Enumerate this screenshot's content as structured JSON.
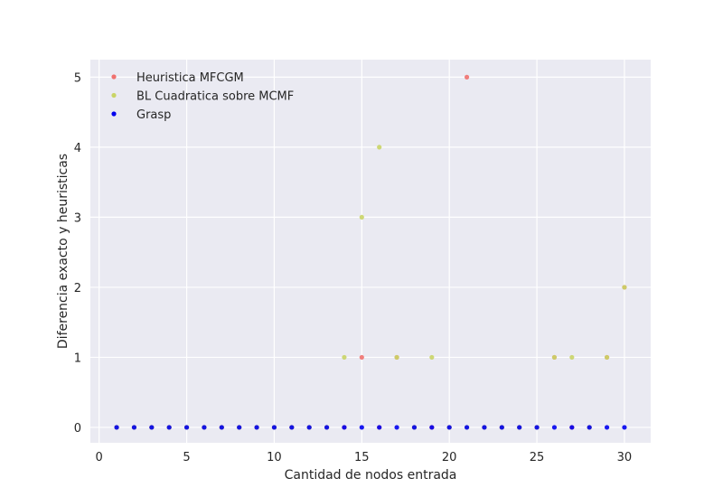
{
  "chart_data": {
    "type": "scatter",
    "xlabel": "Cantidad de nodos entrada",
    "ylabel": "Diferencia exacto y heuristicas",
    "xlim": [
      -0.5,
      31.5
    ],
    "ylim": [
      -0.22,
      5.25
    ],
    "xticks": [
      0,
      5,
      10,
      15,
      20,
      25,
      30
    ],
    "yticks": [
      0,
      1,
      2,
      3,
      4,
      5
    ],
    "grid": true,
    "legend_position": "top-left",
    "series": [
      {
        "name": "Heuristica MFCGM",
        "color": "#f0716e",
        "points": [
          [
            1,
            0
          ],
          [
            2,
            0
          ],
          [
            3,
            0
          ],
          [
            4,
            0
          ],
          [
            5,
            0
          ],
          [
            6,
            0
          ],
          [
            7,
            0
          ],
          [
            8,
            0
          ],
          [
            9,
            0
          ],
          [
            10,
            0
          ],
          [
            11,
            0
          ],
          [
            12,
            0
          ],
          [
            13,
            0
          ],
          [
            14,
            0
          ],
          [
            15,
            1
          ],
          [
            16,
            0
          ],
          [
            17,
            1
          ],
          [
            18,
            0
          ],
          [
            19,
            0
          ],
          [
            20,
            0
          ],
          [
            21,
            5
          ],
          [
            22,
            0
          ],
          [
            23,
            0
          ],
          [
            24,
            0
          ],
          [
            25,
            0
          ],
          [
            26,
            1
          ],
          [
            27,
            0
          ],
          [
            28,
            0
          ],
          [
            29,
            1
          ],
          [
            30,
            2
          ]
        ]
      },
      {
        "name": "BL Cuadratica sobre MCMF",
        "color": "#c9d466",
        "points": [
          [
            1,
            0
          ],
          [
            2,
            0
          ],
          [
            3,
            0
          ],
          [
            4,
            0
          ],
          [
            5,
            0
          ],
          [
            6,
            0
          ],
          [
            7,
            0
          ],
          [
            8,
            0
          ],
          [
            9,
            0
          ],
          [
            10,
            0
          ],
          [
            11,
            0
          ],
          [
            12,
            0
          ],
          [
            13,
            0
          ],
          [
            14,
            1
          ],
          [
            15,
            3
          ],
          [
            16,
            4
          ],
          [
            17,
            1
          ],
          [
            18,
            0
          ],
          [
            19,
            1
          ],
          [
            20,
            0
          ],
          [
            21,
            0
          ],
          [
            22,
            0
          ],
          [
            23,
            0
          ],
          [
            24,
            0
          ],
          [
            25,
            0
          ],
          [
            26,
            1
          ],
          [
            27,
            1
          ],
          [
            28,
            0
          ],
          [
            29,
            1
          ],
          [
            30,
            2
          ]
        ]
      },
      {
        "name": "Grasp",
        "color": "#0000ee",
        "points": [
          [
            1,
            0
          ],
          [
            2,
            0
          ],
          [
            3,
            0
          ],
          [
            4,
            0
          ],
          [
            5,
            0
          ],
          [
            6,
            0
          ],
          [
            7,
            0
          ],
          [
            8,
            0
          ],
          [
            9,
            0
          ],
          [
            10,
            0
          ],
          [
            11,
            0
          ],
          [
            12,
            0
          ],
          [
            13,
            0
          ],
          [
            14,
            0
          ],
          [
            15,
            0
          ],
          [
            16,
            0
          ],
          [
            17,
            0
          ],
          [
            18,
            0
          ],
          [
            19,
            0
          ],
          [
            20,
            0
          ],
          [
            21,
            0
          ],
          [
            22,
            0
          ],
          [
            23,
            0
          ],
          [
            24,
            0
          ],
          [
            25,
            0
          ],
          [
            26,
            0
          ],
          [
            27,
            0
          ],
          [
            28,
            0
          ],
          [
            29,
            0
          ],
          [
            30,
            0
          ]
        ]
      }
    ]
  }
}
